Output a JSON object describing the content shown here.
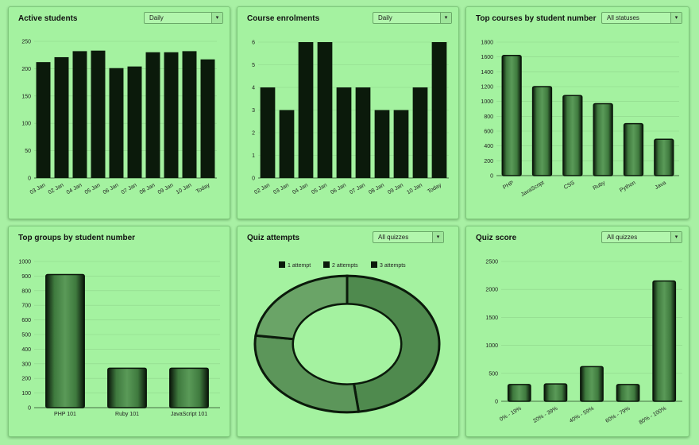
{
  "panels": {
    "active": {
      "title": "Active students",
      "dropdown": "Daily"
    },
    "enrol": {
      "title": "Course enrolments",
      "dropdown": "Daily"
    },
    "courses": {
      "title": "Top courses by student number",
      "dropdown": "All statuses"
    },
    "groups": {
      "title": "Top groups by student number"
    },
    "attempts": {
      "title": "Quiz attempts",
      "dropdown": "All quizzes"
    },
    "score": {
      "title": "Quiz score",
      "dropdown": "All quizzes"
    }
  },
  "colors": {
    "page_bg": "#a8f0a4",
    "panel_bg": "#a4f2a0",
    "bar_dark": "#0b1a0b",
    "bar_mid": "#2f5e2f",
    "bar_light": "#6fae6c",
    "donut": "#4f8a4e"
  },
  "icons": {
    "dropdown": "chevron-down-icon"
  },
  "chart_data": [
    {
      "id": "active",
      "type": "bar",
      "categories": [
        "03 Jan",
        "02 Jan",
        "04 Jan",
        "05 Jan",
        "06 Jan",
        "07 Jan",
        "08 Jan",
        "09 Jan",
        "10 Jan",
        "Today"
      ],
      "values": [
        212,
        221,
        232,
        233,
        201,
        204,
        230,
        230,
        232,
        217
      ],
      "ylim": [
        0,
        250
      ],
      "yticks": [
        "0",
        "50",
        "100",
        "150",
        "200",
        "250"
      ]
    },
    {
      "id": "enrol",
      "type": "bar",
      "categories": [
        "02 Jan",
        "03 Jan",
        "04 Jan",
        "05 Jan",
        "06 Jan",
        "07 Jan",
        "08 Jan",
        "09 Jan",
        "10 Jan",
        "Today"
      ],
      "values": [
        4,
        3,
        6,
        6,
        4,
        4,
        3,
        3,
        4,
        6
      ],
      "ylim": [
        0,
        6
      ],
      "yticks": [
        "0",
        "1",
        "2",
        "3",
        "4",
        "5",
        "6"
      ]
    },
    {
      "id": "courses",
      "type": "bar",
      "categories": [
        "PHP",
        "JavaScript",
        "CSS",
        "Ruby",
        "Python",
        "Java"
      ],
      "values": [
        1620,
        1200,
        1080,
        970,
        700,
        490
      ],
      "ylim": [
        0,
        1800
      ],
      "yticks": [
        "0",
        "200",
        "400",
        "600",
        "800",
        "1000",
        "1200",
        "1400",
        "1600",
        "1800"
      ]
    },
    {
      "id": "groups",
      "type": "bar",
      "categories": [
        "PHP 101",
        "Ruby 101",
        "JavaScript 101"
      ],
      "values": [
        910,
        270,
        270
      ],
      "ylim": [
        0,
        1000
      ],
      "yticks": [
        "0",
        "100",
        "200",
        "300",
        "400",
        "500",
        "600",
        "700",
        "800",
        "900",
        "1000"
      ]
    },
    {
      "id": "attempts",
      "type": "pie",
      "labels": [
        "1 attempt",
        "2 attempts",
        "3 attempts"
      ],
      "values": [
        48,
        29,
        23
      ]
    },
    {
      "id": "score",
      "type": "bar",
      "categories": [
        "0% - 19%",
        "20% - 39%",
        "40% - 59%",
        "60% - 79%",
        "80% - 100%"
      ],
      "values": [
        300,
        310,
        620,
        300,
        2150
      ],
      "ylim": [
        0,
        2500
      ],
      "yticks": [
        "0",
        "500",
        "1000",
        "1500",
        "2000",
        "2500"
      ]
    }
  ]
}
